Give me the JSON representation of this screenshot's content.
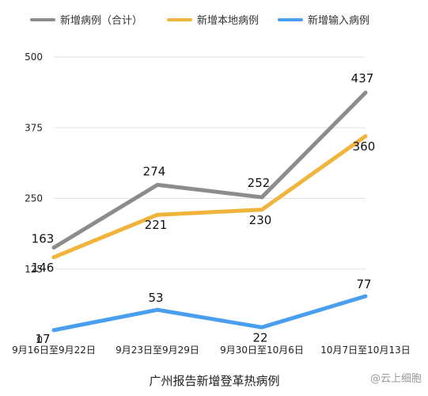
{
  "chart_data": {
    "type": "line",
    "categories": [
      "9月16日至9月22日",
      "9月23日至9月29日",
      "9月30日至10月6日",
      "10月7日至10月13日"
    ],
    "series": [
      {
        "name": "新增病例（合计）",
        "values": [
          163,
          274,
          252,
          437
        ],
        "color": "#8c8c8c"
      },
      {
        "name": "新增本地病例",
        "values": [
          146,
          221,
          230,
          360
        ],
        "color": "#f0b43c"
      },
      {
        "name": "新增输入病例",
        "values": [
          17,
          53,
          22,
          77
        ],
        "color": "#4a9ef0"
      }
    ],
    "yticks": [
      0,
      125,
      250,
      375,
      500
    ],
    "ylim": [
      0,
      500
    ],
    "xlabel": "广州报告新增登革热病例",
    "grid": "horizontal",
    "legend_position": "top"
  },
  "watermark": "@云上细胞"
}
